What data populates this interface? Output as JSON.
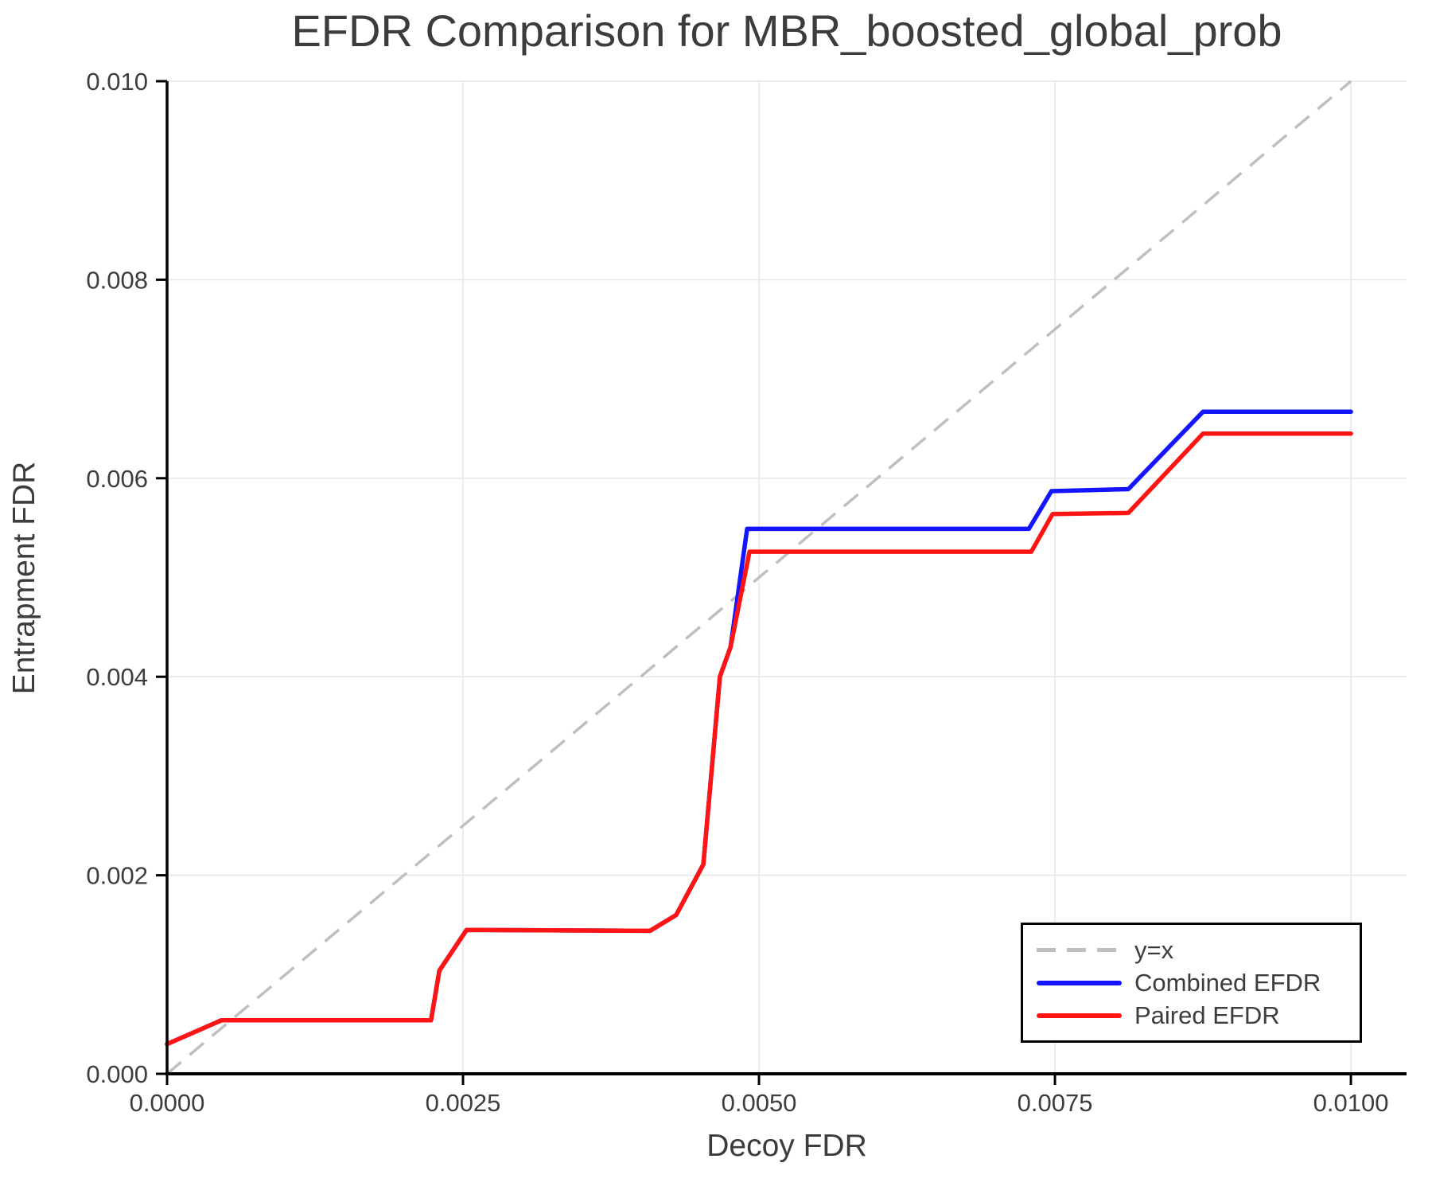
{
  "figure": {
    "title": "EFDR Comparison for MBR_boosted_global_prob",
    "xlabel": "Decoy FDR",
    "ylabel": "Entrapment FDR"
  },
  "legend": {
    "position": "lower right",
    "entries": [
      {
        "label": "y=x",
        "style": "dashed",
        "color": "#bfbfbf"
      },
      {
        "label": "Combined EFDR",
        "style": "solid",
        "color": "#1414ff"
      },
      {
        "label": "Paired EFDR",
        "style": "solid",
        "color": "#ff1414"
      }
    ]
  },
  "colors": {
    "background": "#ffffff",
    "text": "#3d3d3d",
    "grid": "#e7e7e7",
    "axis": "#000000",
    "reference": "#bfbfbf",
    "combined": "#1414ff",
    "paired": "#ff1414"
  },
  "chart_data": {
    "type": "line",
    "title": "EFDR Comparison for MBR_boosted_global_prob",
    "xlabel": "Decoy FDR",
    "ylabel": "Entrapment FDR",
    "xlim": [
      0,
      0.01047
    ],
    "ylim": [
      0,
      0.01
    ],
    "grid": true,
    "legend_position": "lower right",
    "x_ticks": [
      0,
      0.0025,
      0.005,
      0.0075,
      0.01
    ],
    "x_tick_labels": [
      "0.0000",
      "0.0025",
      "0.0050",
      "0.0075",
      "0.0100"
    ],
    "y_ticks": [
      0,
      0.002,
      0.004,
      0.006,
      0.008,
      0.01
    ],
    "y_tick_labels": [
      "0.000",
      "0.002",
      "0.004",
      "0.006",
      "0.008",
      "0.010"
    ],
    "reference_line": {
      "name": "y=x",
      "color": "#bfbfbf",
      "dashed": true,
      "points": [
        [
          0,
          0
        ],
        [
          0.01,
          0.01
        ]
      ]
    },
    "series": [
      {
        "name": "Combined EFDR",
        "color": "#1414ff",
        "points": [
          [
            0.0,
            0.0003
          ],
          [
            0.00046,
            0.00054
          ],
          [
            0.00223,
            0.00054
          ],
          [
            0.0023,
            0.00104
          ],
          [
            0.00253,
            0.00145
          ],
          [
            0.00408,
            0.00144
          ],
          [
            0.0043,
            0.0016
          ],
          [
            0.00453,
            0.00211
          ],
          [
            0.00467,
            0.004
          ],
          [
            0.00476,
            0.0043
          ],
          [
            0.0049,
            0.00549
          ],
          [
            0.00728,
            0.00549
          ],
          [
            0.00747,
            0.00587
          ],
          [
            0.00812,
            0.00589
          ],
          [
            0.00875,
            0.00667
          ],
          [
            0.01,
            0.00667
          ]
        ]
      },
      {
        "name": "Paired EFDR",
        "color": "#ff1414",
        "points": [
          [
            0.0,
            0.0003
          ],
          [
            0.00046,
            0.00054
          ],
          [
            0.00223,
            0.00054
          ],
          [
            0.0023,
            0.00104
          ],
          [
            0.00253,
            0.00145
          ],
          [
            0.00408,
            0.00144
          ],
          [
            0.0043,
            0.0016
          ],
          [
            0.00453,
            0.00211
          ],
          [
            0.00467,
            0.004
          ],
          [
            0.00476,
            0.0043
          ],
          [
            0.00492,
            0.00526
          ],
          [
            0.0073,
            0.00526
          ],
          [
            0.00748,
            0.00564
          ],
          [
            0.00812,
            0.00565
          ],
          [
            0.00875,
            0.00645
          ],
          [
            0.01,
            0.00645
          ]
        ]
      }
    ]
  }
}
